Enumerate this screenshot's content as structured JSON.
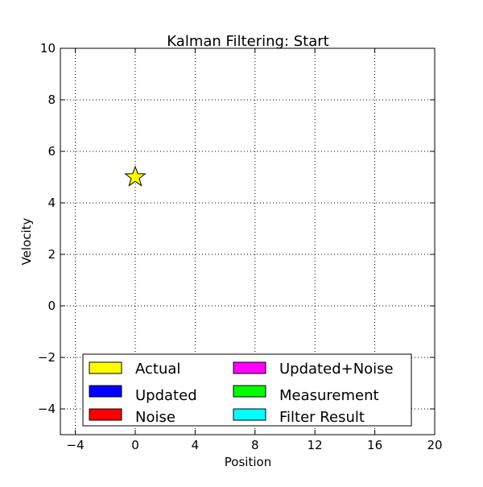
{
  "chart_data": {
    "type": "scatter",
    "title": "Kalman Filtering: Start",
    "xlabel": "Position",
    "ylabel": "Velocity",
    "xlim": [
      -5,
      20
    ],
    "ylim": [
      -5,
      10
    ],
    "xticks": [
      -4,
      0,
      4,
      8,
      12,
      16,
      20
    ],
    "yticks": [
      -4,
      -2,
      0,
      2,
      4,
      6,
      8,
      10
    ],
    "grid": true,
    "grid_style": "dotted",
    "points": [
      {
        "series": "Actual",
        "x": 0,
        "y": 5,
        "marker": "star",
        "color": "#ffff00"
      }
    ],
    "legend": {
      "placement": "lower-center",
      "columns": 2,
      "entries": [
        {
          "label": "Actual",
          "color": "#ffff00"
        },
        {
          "label": "Updated",
          "color": "#0000ff"
        },
        {
          "label": "Noise",
          "color": "#ff0000"
        },
        {
          "label": "Updated+Noise",
          "color": "#ff00ff"
        },
        {
          "label": "Measurement",
          "color": "#00ff00"
        },
        {
          "label": "Filter Result",
          "color": "#00ffff"
        }
      ]
    }
  }
}
